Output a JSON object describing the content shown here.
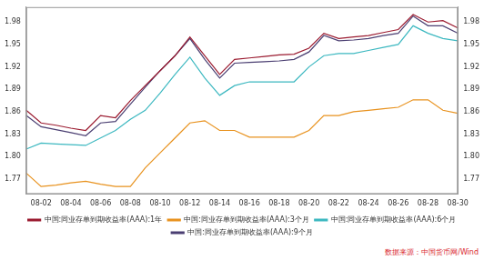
{
  "chart_data": {
    "type": "line",
    "categories": [
      null,
      "08-02",
      null,
      "08-04",
      null,
      "08-06",
      null,
      "08-08",
      null,
      "08-10",
      null,
      "08-12",
      null,
      "08-14",
      null,
      "08-16",
      null,
      "08-18",
      null,
      "08-20",
      null,
      "08-22",
      null,
      "08-24",
      null,
      "08-26",
      null,
      "08-28",
      null,
      "08-30"
    ],
    "series": [
      {
        "name": "中国:同业存单到期收益率(AAA):1年",
        "color": "#9b1b30",
        "values": [
          1.862,
          1.845,
          1.842,
          1.838,
          1.835,
          1.855,
          1.852,
          1.875,
          1.895,
          1.915,
          1.935,
          1.96,
          1.935,
          1.91,
          1.93,
          1.932,
          1.934,
          1.936,
          1.937,
          1.945,
          1.965,
          1.958,
          1.96,
          1.962,
          1.966,
          1.97,
          1.99,
          1.98,
          1.982,
          1.972
        ]
      },
      {
        "name": "中国:同业存单到期收益率(AAA):3个月",
        "color": "#e8921e",
        "values": [
          1.778,
          1.76,
          1.762,
          1.765,
          1.767,
          1.763,
          1.76,
          1.76,
          1.785,
          1.805,
          1.825,
          1.845,
          1.848,
          1.835,
          1.835,
          1.826,
          1.826,
          1.826,
          1.826,
          1.835,
          1.855,
          1.855,
          1.86,
          1.862,
          1.864,
          1.866,
          1.876,
          1.876,
          1.862,
          1.858
        ]
      },
      {
        "name": "中国:同业存单到期收益率(AAA):6个月",
        "color": "#3cb8c0",
        "values": [
          1.81,
          1.818,
          1.817,
          1.816,
          1.815,
          1.825,
          1.835,
          1.85,
          1.862,
          1.885,
          1.91,
          1.933,
          1.905,
          1.882,
          1.895,
          1.9,
          1.9,
          1.9,
          1.9,
          1.92,
          1.935,
          1.938,
          1.938,
          1.942,
          1.946,
          1.95,
          1.975,
          1.965,
          1.958,
          1.955
        ]
      },
      {
        "name": "中国:同业存单到期收益率(AAA):9个月",
        "color": "#4b3f72",
        "values": [
          1.855,
          1.84,
          1.836,
          1.832,
          1.828,
          1.845,
          1.847,
          1.87,
          1.893,
          1.915,
          1.935,
          1.958,
          1.93,
          1.905,
          1.925,
          1.926,
          1.927,
          1.928,
          1.93,
          1.94,
          1.962,
          1.955,
          1.956,
          1.958,
          1.962,
          1.965,
          1.988,
          1.975,
          1.975,
          1.965
        ]
      }
    ],
    "ylim": [
      1.75,
      2.0
    ],
    "yticks": [
      1.77,
      {
        "value": 1.8,
        "label": "1.80"
      },
      1.83,
      1.86,
      1.89,
      1.92,
      1.95,
      1.98
    ],
    "y2lim": [
      1.75,
      2.0
    ],
    "y2ticks": [
      1.77,
      {
        "value": 1.8,
        "label": "1.80"
      },
      1.83,
      1.86,
      1.89,
      1.92,
      1.95,
      1.98
    ],
    "grid": false,
    "legend": "bottom",
    "annotations": [
      "数据来源：中国货币网/Wind"
    ]
  }
}
